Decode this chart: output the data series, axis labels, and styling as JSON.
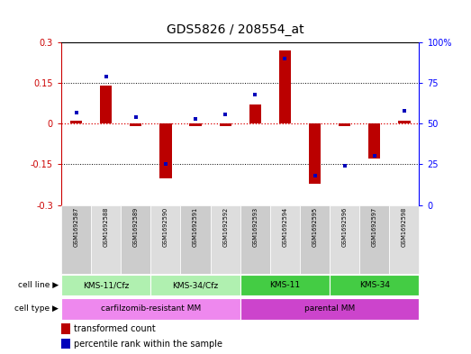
{
  "title": "GDS5826 / 208554_at",
  "samples": [
    "GSM1692587",
    "GSM1692588",
    "GSM1692589",
    "GSM1692590",
    "GSM1692591",
    "GSM1692592",
    "GSM1692593",
    "GSM1692594",
    "GSM1692595",
    "GSM1692596",
    "GSM1692597",
    "GSM1692598"
  ],
  "transformed_count": [
    0.01,
    0.14,
    -0.01,
    -0.2,
    -0.01,
    -0.01,
    0.07,
    0.27,
    -0.22,
    -0.01,
    -0.13,
    0.01
  ],
  "percentile_rank": [
    57,
    79,
    54,
    25,
    53,
    56,
    68,
    90,
    18,
    24,
    30,
    58
  ],
  "cell_line_groups": [
    {
      "label": "KMS-11/Cfz",
      "start": 0,
      "end": 3,
      "color": "#b0f0b0"
    },
    {
      "label": "KMS-34/Cfz",
      "start": 3,
      "end": 6,
      "color": "#b0f0b0"
    },
    {
      "label": "KMS-11",
      "start": 6,
      "end": 9,
      "color": "#44cc44"
    },
    {
      "label": "KMS-34",
      "start": 9,
      "end": 12,
      "color": "#44cc44"
    }
  ],
  "cell_type_groups": [
    {
      "label": "carfilzomib-resistant MM",
      "start": 0,
      "end": 6,
      "color": "#ee88ee"
    },
    {
      "label": "parental MM",
      "start": 6,
      "end": 12,
      "color": "#cc44cc"
    }
  ],
  "bar_color": "#BB0000",
  "dot_color": "#0000BB",
  "ylim_left": [
    -0.3,
    0.3
  ],
  "ylim_right": [
    0,
    100
  ],
  "yticks_left": [
    -0.3,
    -0.15,
    0.0,
    0.15,
    0.3
  ],
  "ytick_labels_left": [
    "-0.3",
    "-0.15",
    "0",
    "0.15",
    "0.3"
  ],
  "yticks_right": [
    0,
    25,
    50,
    75,
    100
  ],
  "ytick_labels_right": [
    "0",
    "25",
    "50",
    "75",
    "100%"
  ],
  "bg_color": "#ffffff",
  "gsm_bg_even": "#cccccc",
  "gsm_bg_odd": "#dddddd"
}
